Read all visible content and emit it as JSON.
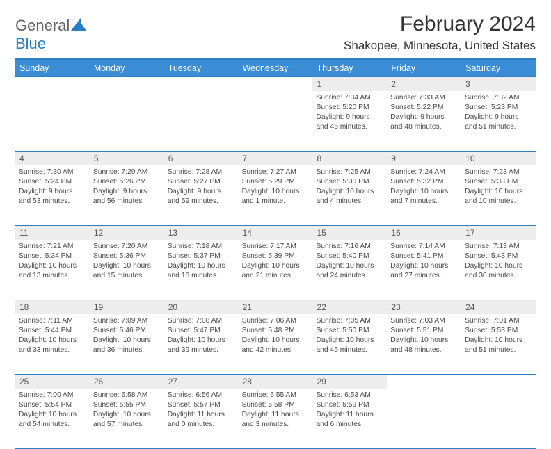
{
  "logo": {
    "general": "General",
    "blue": "Blue"
  },
  "title": {
    "month": "February 2024",
    "location": "Shakopee, Minnesota, United States"
  },
  "dayHeaders": [
    "Sunday",
    "Monday",
    "Tuesday",
    "Wednesday",
    "Thursday",
    "Friday",
    "Saturday"
  ],
  "weeks": [
    [
      null,
      null,
      null,
      null,
      {
        "num": "1",
        "sunrise": "Sunrise: 7:34 AM",
        "sunset": "Sunset: 5:20 PM",
        "dayl1": "Daylight: 9 hours",
        "dayl2": "and 46 minutes."
      },
      {
        "num": "2",
        "sunrise": "Sunrise: 7:33 AM",
        "sunset": "Sunset: 5:22 PM",
        "dayl1": "Daylight: 9 hours",
        "dayl2": "and 48 minutes."
      },
      {
        "num": "3",
        "sunrise": "Sunrise: 7:32 AM",
        "sunset": "Sunset: 5:23 PM",
        "dayl1": "Daylight: 9 hours",
        "dayl2": "and 51 minutes."
      }
    ],
    [
      {
        "num": "4",
        "sunrise": "Sunrise: 7:30 AM",
        "sunset": "Sunset: 5:24 PM",
        "dayl1": "Daylight: 9 hours",
        "dayl2": "and 53 minutes."
      },
      {
        "num": "5",
        "sunrise": "Sunrise: 7:29 AM",
        "sunset": "Sunset: 5:26 PM",
        "dayl1": "Daylight: 9 hours",
        "dayl2": "and 56 minutes."
      },
      {
        "num": "6",
        "sunrise": "Sunrise: 7:28 AM",
        "sunset": "Sunset: 5:27 PM",
        "dayl1": "Daylight: 9 hours",
        "dayl2": "and 59 minutes."
      },
      {
        "num": "7",
        "sunrise": "Sunrise: 7:27 AM",
        "sunset": "Sunset: 5:29 PM",
        "dayl1": "Daylight: 10 hours",
        "dayl2": "and 1 minute."
      },
      {
        "num": "8",
        "sunrise": "Sunrise: 7:25 AM",
        "sunset": "Sunset: 5:30 PM",
        "dayl1": "Daylight: 10 hours",
        "dayl2": "and 4 minutes."
      },
      {
        "num": "9",
        "sunrise": "Sunrise: 7:24 AM",
        "sunset": "Sunset: 5:32 PM",
        "dayl1": "Daylight: 10 hours",
        "dayl2": "and 7 minutes."
      },
      {
        "num": "10",
        "sunrise": "Sunrise: 7:23 AM",
        "sunset": "Sunset: 5:33 PM",
        "dayl1": "Daylight: 10 hours",
        "dayl2": "and 10 minutes."
      }
    ],
    [
      {
        "num": "11",
        "sunrise": "Sunrise: 7:21 AM",
        "sunset": "Sunset: 5:34 PM",
        "dayl1": "Daylight: 10 hours",
        "dayl2": "and 13 minutes."
      },
      {
        "num": "12",
        "sunrise": "Sunrise: 7:20 AM",
        "sunset": "Sunset: 5:36 PM",
        "dayl1": "Daylight: 10 hours",
        "dayl2": "and 15 minutes."
      },
      {
        "num": "13",
        "sunrise": "Sunrise: 7:18 AM",
        "sunset": "Sunset: 5:37 PM",
        "dayl1": "Daylight: 10 hours",
        "dayl2": "and 18 minutes."
      },
      {
        "num": "14",
        "sunrise": "Sunrise: 7:17 AM",
        "sunset": "Sunset: 5:39 PM",
        "dayl1": "Daylight: 10 hours",
        "dayl2": "and 21 minutes."
      },
      {
        "num": "15",
        "sunrise": "Sunrise: 7:16 AM",
        "sunset": "Sunset: 5:40 PM",
        "dayl1": "Daylight: 10 hours",
        "dayl2": "and 24 minutes."
      },
      {
        "num": "16",
        "sunrise": "Sunrise: 7:14 AM",
        "sunset": "Sunset: 5:41 PM",
        "dayl1": "Daylight: 10 hours",
        "dayl2": "and 27 minutes."
      },
      {
        "num": "17",
        "sunrise": "Sunrise: 7:13 AM",
        "sunset": "Sunset: 5:43 PM",
        "dayl1": "Daylight: 10 hours",
        "dayl2": "and 30 minutes."
      }
    ],
    [
      {
        "num": "18",
        "sunrise": "Sunrise: 7:11 AM",
        "sunset": "Sunset: 5:44 PM",
        "dayl1": "Daylight: 10 hours",
        "dayl2": "and 33 minutes."
      },
      {
        "num": "19",
        "sunrise": "Sunrise: 7:09 AM",
        "sunset": "Sunset: 5:46 PM",
        "dayl1": "Daylight: 10 hours",
        "dayl2": "and 36 minutes."
      },
      {
        "num": "20",
        "sunrise": "Sunrise: 7:08 AM",
        "sunset": "Sunset: 5:47 PM",
        "dayl1": "Daylight: 10 hours",
        "dayl2": "and 39 minutes."
      },
      {
        "num": "21",
        "sunrise": "Sunrise: 7:06 AM",
        "sunset": "Sunset: 5:48 PM",
        "dayl1": "Daylight: 10 hours",
        "dayl2": "and 42 minutes."
      },
      {
        "num": "22",
        "sunrise": "Sunrise: 7:05 AM",
        "sunset": "Sunset: 5:50 PM",
        "dayl1": "Daylight: 10 hours",
        "dayl2": "and 45 minutes."
      },
      {
        "num": "23",
        "sunrise": "Sunrise: 7:03 AM",
        "sunset": "Sunset: 5:51 PM",
        "dayl1": "Daylight: 10 hours",
        "dayl2": "and 48 minutes."
      },
      {
        "num": "24",
        "sunrise": "Sunrise: 7:01 AM",
        "sunset": "Sunset: 5:53 PM",
        "dayl1": "Daylight: 10 hours",
        "dayl2": "and 51 minutes."
      }
    ],
    [
      {
        "num": "25",
        "sunrise": "Sunrise: 7:00 AM",
        "sunset": "Sunset: 5:54 PM",
        "dayl1": "Daylight: 10 hours",
        "dayl2": "and 54 minutes."
      },
      {
        "num": "26",
        "sunrise": "Sunrise: 6:58 AM",
        "sunset": "Sunset: 5:55 PM",
        "dayl1": "Daylight: 10 hours",
        "dayl2": "and 57 minutes."
      },
      {
        "num": "27",
        "sunrise": "Sunrise: 6:56 AM",
        "sunset": "Sunset: 5:57 PM",
        "dayl1": "Daylight: 11 hours",
        "dayl2": "and 0 minutes."
      },
      {
        "num": "28",
        "sunrise": "Sunrise: 6:55 AM",
        "sunset": "Sunset: 5:58 PM",
        "dayl1": "Daylight: 11 hours",
        "dayl2": "and 3 minutes."
      },
      {
        "num": "29",
        "sunrise": "Sunrise: 6:53 AM",
        "sunset": "Sunset: 5:59 PM",
        "dayl1": "Daylight: 11 hours",
        "dayl2": "and 6 minutes."
      },
      null,
      null
    ]
  ],
  "colors": {
    "header_bg": "#3a8cd4",
    "border": "#2b7dc4",
    "daynum_bg": "#ededed",
    "text": "#4a4a4a",
    "page_bg": "#ffffff"
  }
}
